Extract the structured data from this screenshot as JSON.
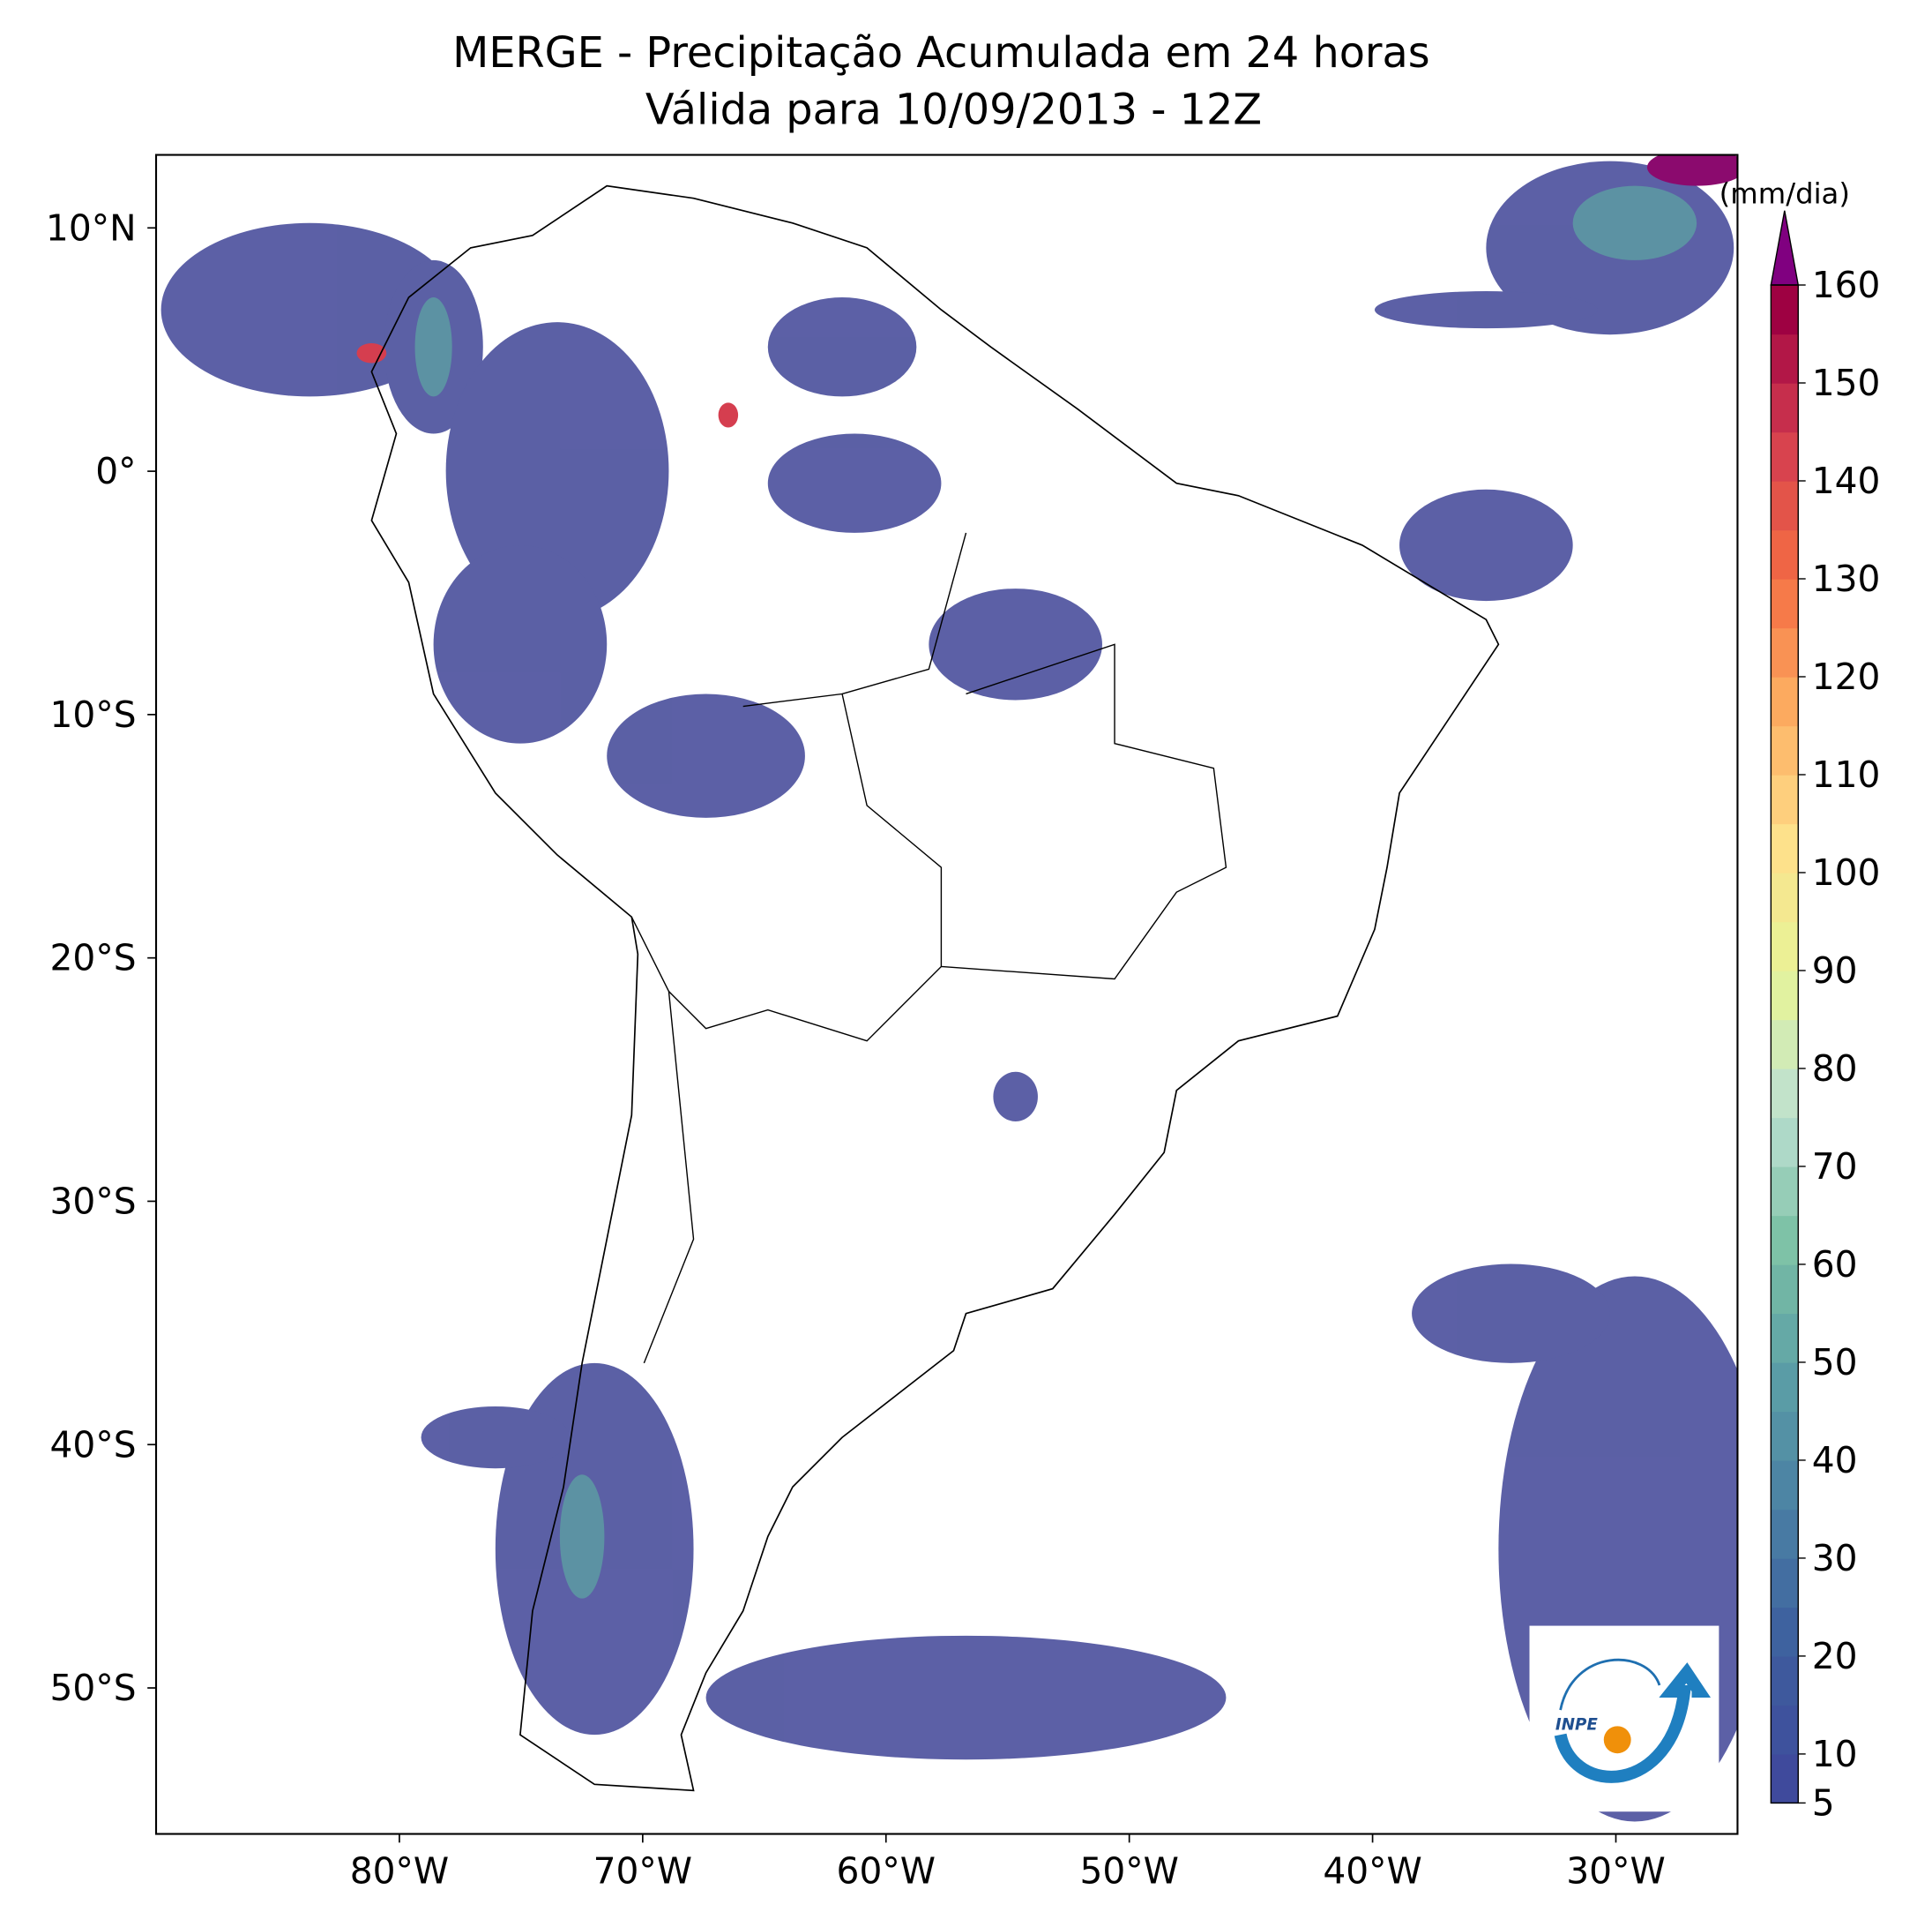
{
  "title": [
    "MERGE - Precipitação Acumulada em 24 horas",
    "Válida para 10/09/2013 - 12Z"
  ],
  "map": {
    "xlim": [
      -90,
      -25
    ],
    "ylim": [
      -56,
      13
    ],
    "xticks": [
      {
        "value": -80,
        "label": "80°W"
      },
      {
        "value": -70,
        "label": "70°W"
      },
      {
        "value": -60,
        "label": "60°W"
      },
      {
        "value": -50,
        "label": "50°W"
      },
      {
        "value": -40,
        "label": "40°W"
      },
      {
        "value": -30,
        "label": "30°W"
      }
    ],
    "yticks": [
      {
        "value": 10,
        "label": "10°N"
      },
      {
        "value": 0,
        "label": "0°"
      },
      {
        "value": -10,
        "label": "10°S"
      },
      {
        "value": -20,
        "label": "20°S"
      },
      {
        "value": -30,
        "label": "30°S"
      },
      {
        "value": -40,
        "label": "40°S"
      },
      {
        "value": -50,
        "label": "50°S"
      }
    ]
  },
  "colorbar": {
    "label": "(mm/dia)",
    "lim": [
      5,
      160
    ],
    "ticks": [
      5,
      10,
      20,
      30,
      40,
      50,
      60,
      70,
      80,
      90,
      100,
      110,
      120,
      130,
      140,
      150,
      160
    ]
  },
  "logo": "INPE"
}
